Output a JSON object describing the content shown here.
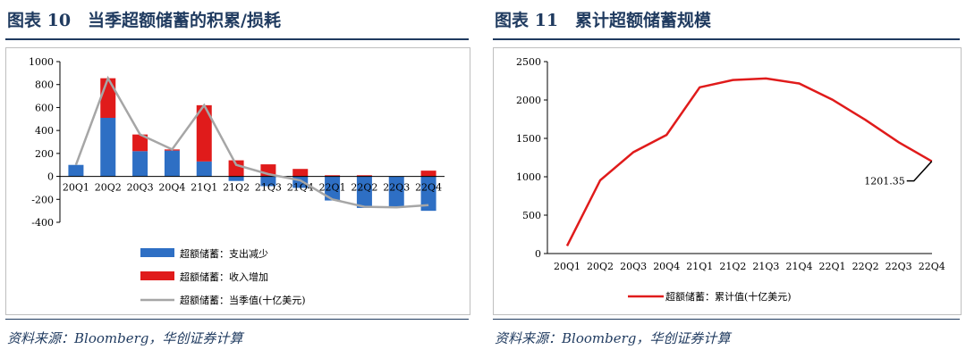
{
  "left": {
    "title": "图表 10　当季超额储蓄的积累/损耗",
    "source": "资料来源：Bloomberg，华创证券计算",
    "chart_data": {
      "type": "bar",
      "categories": [
        "20Q1",
        "20Q2",
        "20Q3",
        "20Q4",
        "21Q1",
        "21Q2",
        "21Q3",
        "21Q4",
        "22Q1",
        "22Q2",
        "22Q3",
        "22Q4"
      ],
      "ylim": [
        -400,
        1000
      ],
      "yticks": [
        -400,
        -200,
        0,
        200,
        400,
        600,
        800,
        1000
      ],
      "series": [
        {
          "name": "超额储蓄：支出减少",
          "type": "bar",
          "color": "#2e6fc4",
          "values": [
            100,
            510,
            220,
            225,
            130,
            -40,
            -85,
            -100,
            -210,
            -275,
            -270,
            -300
          ]
        },
        {
          "name": "超额储蓄：收入增加",
          "type": "bar",
          "color": "#e01b1b",
          "values": [
            0,
            345,
            145,
            10,
            490,
            140,
            105,
            65,
            10,
            10,
            0,
            50
          ]
        },
        {
          "name": "超额储蓄：当季值(十亿美元)",
          "type": "line",
          "color": "#a6a6a6",
          "values": [
            100,
            855,
            365,
            235,
            620,
            100,
            20,
            -35,
            -200,
            -265,
            -270,
            -250
          ]
        }
      ]
    }
  },
  "right": {
    "title": "图表 11　累计超额储蓄规模",
    "source": "资料来源：Bloomberg，华创证券计算",
    "chart_data": {
      "type": "line",
      "categories": [
        "20Q1",
        "20Q2",
        "20Q3",
        "20Q4",
        "21Q1",
        "21Q2",
        "21Q3",
        "21Q4",
        "22Q1",
        "22Q2",
        "22Q3",
        "22Q4"
      ],
      "ylim": [
        0,
        2500
      ],
      "yticks": [
        0,
        500,
        1000,
        1500,
        2000,
        2500
      ],
      "series": [
        {
          "name": "超额储蓄：累计值(十亿美元)",
          "color": "#e01b1b",
          "values": [
            100,
            955,
            1320,
            1545,
            2165,
            2260,
            2280,
            2215,
            2005,
            1740,
            1450,
            1201.35
          ]
        }
      ],
      "annotation": "1201.35"
    }
  }
}
